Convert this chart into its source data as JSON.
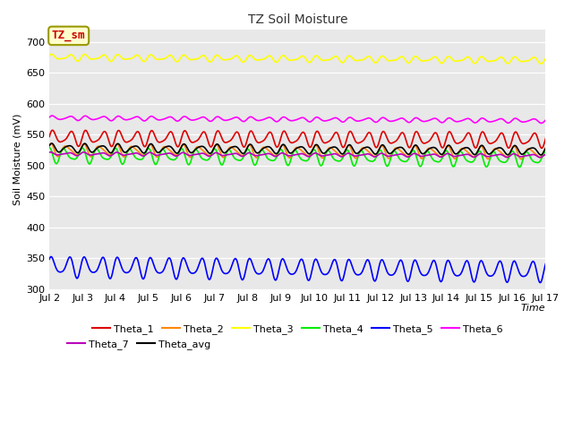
{
  "title": "TZ Soil Moisture",
  "xlabel": "Time",
  "ylabel": "Soil Moisture (mV)",
  "background_color": "#e8e8e8",
  "plot_bg_color": "#e8e8e8",
  "ylim": [
    300,
    720
  ],
  "yticks": [
    300,
    350,
    400,
    450,
    500,
    550,
    600,
    650,
    700
  ],
  "num_days": 15,
  "points_per_day": 48,
  "xtick_labels": [
    "Jul 2",
    "Jul 3",
    "Jul 4",
    "Jul 5",
    "Jul 6",
    "Jul 7",
    "Jul 8",
    "Jul 9",
    "Jul 10",
    "Jul 11",
    "Jul 12",
    "Jul 13",
    "Jul 14",
    "Jul 15",
    "Jul 16",
    "Jul 17"
  ],
  "lines": {
    "Theta_1": {
      "color": "#dd0000",
      "base": 545,
      "amp1": 10,
      "amp2": 4,
      "trend": -0.2,
      "phase1": 0.0,
      "phase2": 0.5
    },
    "Theta_2": {
      "color": "#ff8800",
      "base": 525,
      "amp1": 8,
      "amp2": 3,
      "trend": -0.3,
      "phase1": 1.2,
      "phase2": 0.3
    },
    "Theta_3": {
      "color": "#ffff00",
      "base": 675,
      "amp1": 4,
      "amp2": 2,
      "trend": -0.3,
      "phase1": 0.3,
      "phase2": 1.0
    },
    "Theta_4": {
      "color": "#00ee00",
      "base": 517,
      "amp1": 10,
      "amp2": 4,
      "trend": -0.4,
      "phase1": 2.0,
      "phase2": 0.8
    },
    "Theta_5": {
      "color": "#0000ff",
      "base": 337,
      "amp1": 14,
      "amp2": 5,
      "trend": -0.5,
      "phase1": 0.5,
      "phase2": 1.5
    },
    "Theta_6": {
      "color": "#ff00ff",
      "base": 577,
      "amp1": 3,
      "amp2": 1,
      "trend": -0.3,
      "phase1": 0.2,
      "phase2": 0.6
    },
    "Theta_7": {
      "color": "#bb00bb",
      "base": 519,
      "amp1": 2,
      "amp2": 1,
      "trend": -0.2,
      "phase1": 0.8,
      "phase2": 1.2
    },
    "Theta_avg": {
      "color": "#000000",
      "base": 528,
      "amp1": 6,
      "amp2": 2,
      "trend": -0.25,
      "phase1": 0.6,
      "phase2": 0.4
    }
  },
  "legend_rows": [
    [
      "Theta_1",
      "Theta_2",
      "Theta_3",
      "Theta_4",
      "Theta_5",
      "Theta_6"
    ],
    [
      "Theta_7",
      "Theta_avg"
    ]
  ],
  "legend_box_text": "TZ_sm",
  "legend_box_bg": "#ffffcc",
  "legend_box_edge": "#999900",
  "legend_box_text_color": "#cc0000"
}
